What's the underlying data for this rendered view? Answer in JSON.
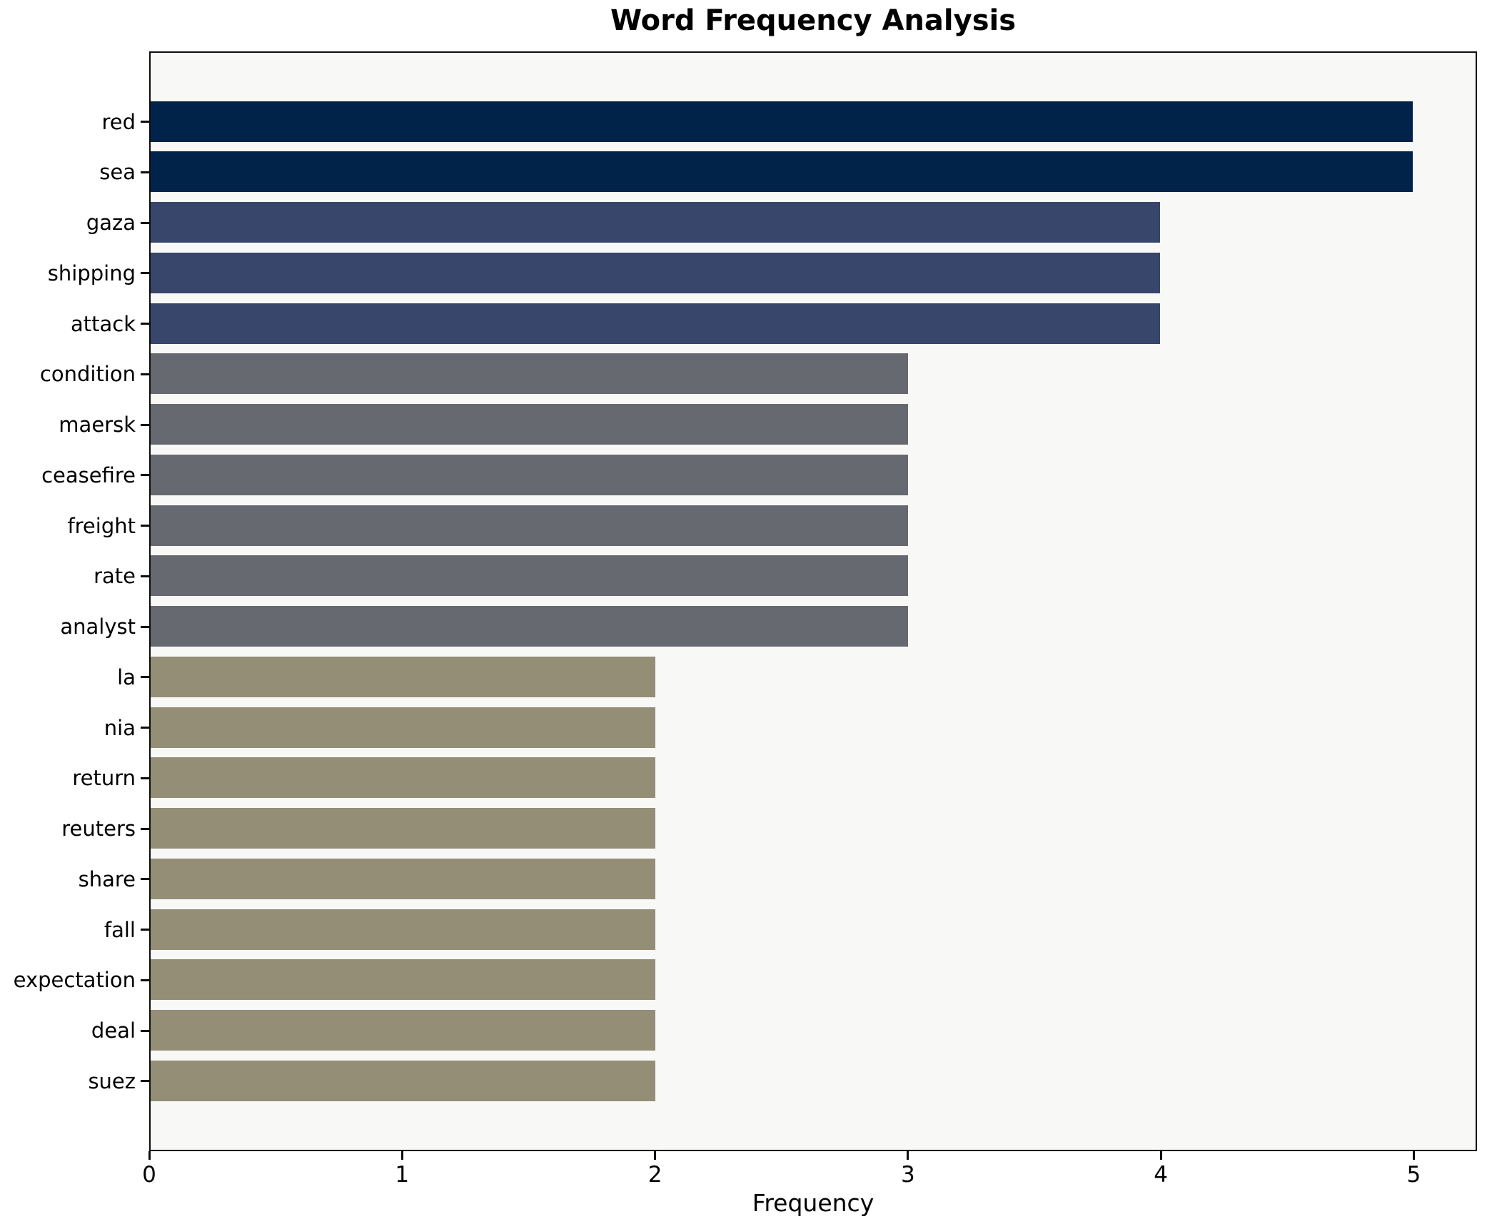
{
  "chart_data": {
    "type": "bar",
    "orientation": "horizontal",
    "title": "Word Frequency Analysis",
    "xlabel": "Frequency",
    "ylabel": "",
    "xlim": [
      0,
      5.25
    ],
    "x_ticks": [
      "0",
      "1",
      "2",
      "3",
      "4",
      "5"
    ],
    "grid": false,
    "legend_position": "none",
    "categories": [
      "red",
      "sea",
      "gaza",
      "shipping",
      "attack",
      "condition",
      "maersk",
      "ceasefire",
      "freight",
      "rate",
      "analyst",
      "la",
      "nia",
      "return",
      "reuters",
      "share",
      "fall",
      "expectation",
      "deal",
      "suez"
    ],
    "values": [
      5,
      5,
      4,
      4,
      4,
      3,
      3,
      3,
      3,
      3,
      3,
      2,
      2,
      2,
      2,
      2,
      2,
      2,
      2,
      2
    ],
    "bar_colors": [
      "#022349",
      "#022349",
      "#38466b",
      "#38466b",
      "#38466b",
      "#66696f",
      "#66696f",
      "#66696f",
      "#66696f",
      "#66696f",
      "#66696f",
      "#958e76",
      "#958e76",
      "#958e76",
      "#958e76",
      "#958e76",
      "#958e76",
      "#958e76",
      "#958e76",
      "#958e76"
    ],
    "value_color_map": {
      "5": "#022349",
      "4": "#38466b",
      "3": "#66696f",
      "2": "#958e76"
    },
    "plot_background": "#f8f8f7",
    "figure_background": "#ffffff"
  }
}
